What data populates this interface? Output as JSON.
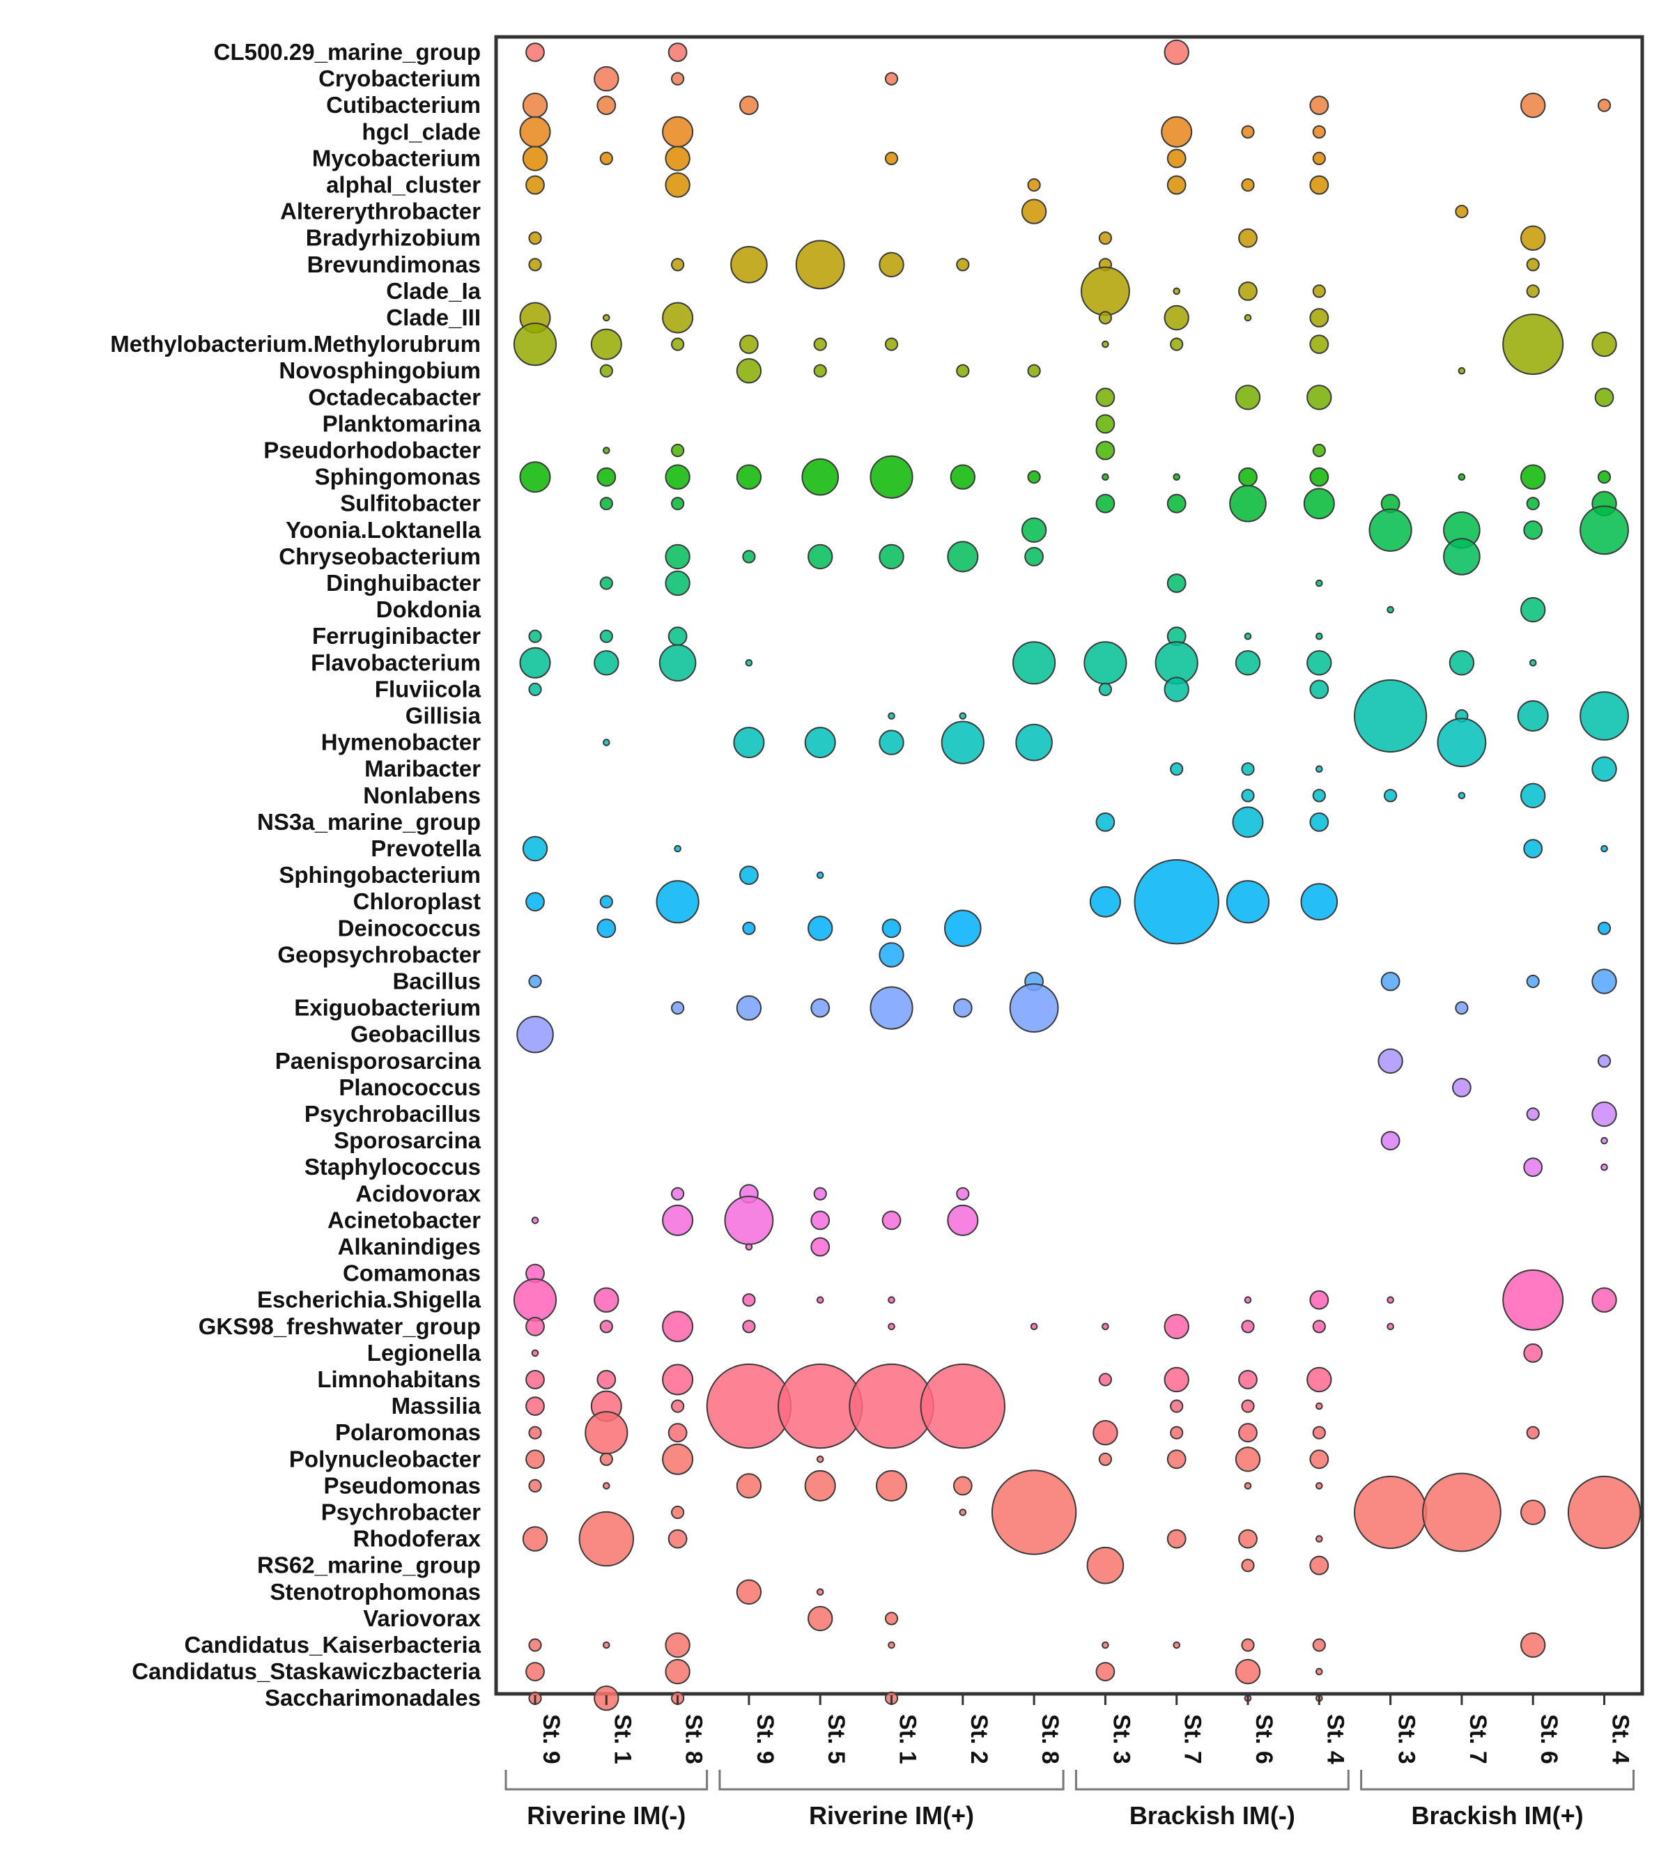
{
  "chart_data": {
    "type": "bubble",
    "genera": [
      "CL500.29_marine_group",
      "Cryobacterium",
      "Cutibacterium",
      "hgcI_clade",
      "Mycobacterium",
      "alphal_cluster",
      "Altererythrobacter",
      "Bradyrhizobium",
      "Brevundimonas",
      "Clade_Ia",
      "Clade_III",
      "Methylobacterium.Methylorubrum",
      "Novosphingobium",
      "Octadecabacter",
      "Planktomarina",
      "Pseudorhodobacter",
      "Sphingomonas",
      "Sulfitobacter",
      "Yoonia.Loktanella",
      "Chryseobacterium",
      "Dinghuibacter",
      "Dokdonia",
      "Ferruginibacter",
      "Flavobacterium",
      "Fluviicola",
      "Gillisia",
      "Hymenobacter",
      "Maribacter",
      "Nonlabens",
      "NS3a_marine_group",
      "Prevotella",
      "Sphingobacterium",
      "Chloroplast",
      "Deinococcus",
      "Geopsychrobacter",
      "Bacillus",
      "Exiguobacterium",
      "Geobacillus",
      "Paenisporosarcina",
      "Planococcus",
      "Psychrobacillus",
      "Sporosarcina",
      "Staphylococcus",
      "Acidovorax",
      "Acinetobacter",
      "Alkanindiges",
      "Comamonas",
      "Escherichia.Shigella",
      "GKS98_freshwater_group",
      "Legionella",
      "Limnohabitans",
      "Massilia",
      "Polaromonas",
      "Polynucleobacter",
      "Pseudomonas",
      "Psychrobacter",
      "Rhodoferax",
      "RS62_marine_group",
      "Stenotrophomonas",
      "Variovorax",
      "Candidatus_Kaiserbacteria",
      "Candidatus_Staskawiczbacteria",
      "Saccharimonadales"
    ],
    "columns": [
      {
        "label": "St. 9",
        "group": 0
      },
      {
        "label": "St. 1",
        "group": 0
      },
      {
        "label": "St. 8",
        "group": 0
      },
      {
        "label": "St. 9",
        "group": 1
      },
      {
        "label": "St. 5",
        "group": 1
      },
      {
        "label": "St. 1",
        "group": 1
      },
      {
        "label": "St. 2",
        "group": 1
      },
      {
        "label": "St. 8",
        "group": 1
      },
      {
        "label": "St. 3",
        "group": 2
      },
      {
        "label": "St. 7",
        "group": 2
      },
      {
        "label": "St. 6",
        "group": 2
      },
      {
        "label": "St. 4",
        "group": 2
      },
      {
        "label": "St. 3",
        "group": 3
      },
      {
        "label": "St. 7",
        "group": 3
      },
      {
        "label": "St. 6",
        "group": 3
      },
      {
        "label": "St. 4",
        "group": 3
      }
    ],
    "groups": [
      "Riverine IM(-)",
      "Riverine IM(+)",
      "Brackish IM(-)",
      "Brackish IM(+)"
    ],
    "size_unit": "relative bubble size (estimated, 1 = smallest, 14 = largest)",
    "values": [
      [
        3,
        0,
        3,
        0,
        0,
        0,
        0,
        0,
        0,
        4,
        0,
        0,
        0,
        0,
        0,
        0
      ],
      [
        0,
        4,
        2,
        0,
        0,
        2,
        0,
        0,
        0,
        0,
        0,
        0,
        0,
        0,
        0,
        0
      ],
      [
        4,
        3,
        0,
        3,
        0,
        0,
        0,
        0,
        0,
        0,
        0,
        3,
        0,
        0,
        4,
        2
      ],
      [
        5,
        0,
        5,
        0,
        0,
        0,
        0,
        0,
        0,
        5,
        2,
        2,
        0,
        0,
        0,
        0
      ],
      [
        4,
        2,
        4,
        0,
        0,
        2,
        0,
        0,
        0,
        3,
        0,
        2,
        0,
        0,
        0,
        0
      ],
      [
        3,
        0,
        4,
        0,
        0,
        0,
        0,
        2,
        0,
        3,
        2,
        3,
        0,
        0,
        0,
        0
      ],
      [
        0,
        0,
        0,
        0,
        0,
        0,
        0,
        4,
        0,
        0,
        0,
        0,
        0,
        2,
        0,
        0
      ],
      [
        2,
        0,
        0,
        0,
        0,
        0,
        0,
        0,
        2,
        0,
        3,
        0,
        0,
        0,
        4,
        0
      ],
      [
        2,
        0,
        2,
        6,
        8,
        4,
        2,
        0,
        2,
        0,
        0,
        0,
        0,
        0,
        2,
        0
      ],
      [
        0,
        0,
        0,
        0,
        0,
        0,
        0,
        0,
        8,
        1,
        3,
        2,
        0,
        0,
        2,
        0
      ],
      [
        5,
        1,
        5,
        0,
        0,
        0,
        0,
        0,
        2,
        4,
        1,
        3,
        0,
        0,
        0,
        0
      ],
      [
        7,
        5,
        2,
        3,
        2,
        2,
        0,
        0,
        1,
        2,
        0,
        3,
        0,
        0,
        10,
        4
      ],
      [
        0,
        2,
        0,
        4,
        2,
        0,
        2,
        2,
        0,
        0,
        0,
        0,
        0,
        1,
        0,
        0
      ],
      [
        0,
        0,
        0,
        0,
        0,
        0,
        0,
        0,
        3,
        0,
        4,
        4,
        0,
        0,
        0,
        3
      ],
      [
        0,
        0,
        0,
        0,
        0,
        0,
        0,
        0,
        3,
        0,
        0,
        0,
        0,
        0,
        0,
        0
      ],
      [
        0,
        1,
        2,
        0,
        0,
        0,
        0,
        0,
        3,
        0,
        0,
        2,
        0,
        0,
        0,
        0
      ],
      [
        5,
        3,
        4,
        4,
        6,
        7,
        4,
        2,
        1,
        1,
        3,
        3,
        0,
        1,
        4,
        2
      ],
      [
        0,
        2,
        2,
        0,
        0,
        0,
        0,
        0,
        3,
        3,
        6,
        5,
        3,
        0,
        2,
        4
      ],
      [
        0,
        0,
        0,
        0,
        0,
        0,
        0,
        4,
        0,
        0,
        0,
        0,
        7,
        6,
        3,
        8
      ],
      [
        0,
        0,
        4,
        2,
        4,
        4,
        5,
        3,
        0,
        0,
        0,
        0,
        0,
        6,
        0,
        0
      ],
      [
        0,
        2,
        4,
        0,
        0,
        0,
        0,
        0,
        0,
        3,
        0,
        1,
        0,
        0,
        0,
        0
      ],
      [
        0,
        0,
        0,
        0,
        0,
        0,
        0,
        0,
        0,
        0,
        0,
        0,
        1,
        0,
        4,
        0
      ],
      [
        2,
        2,
        3,
        0,
        0,
        0,
        0,
        0,
        0,
        3,
        1,
        1,
        0,
        0,
        0,
        0
      ],
      [
        5,
        4,
        6,
        1,
        0,
        0,
        0,
        7,
        7,
        7,
        4,
        4,
        0,
        4,
        1,
        0
      ],
      [
        2,
        0,
        0,
        0,
        0,
        0,
        0,
        0,
        2,
        4,
        0,
        3,
        0,
        0,
        0,
        0
      ],
      [
        0,
        0,
        0,
        0,
        0,
        1,
        1,
        0,
        0,
        0,
        0,
        0,
        12,
        2,
        5,
        8
      ],
      [
        0,
        1,
        0,
        5,
        5,
        4,
        7,
        6,
        0,
        0,
        0,
        0,
        0,
        8,
        0,
        0
      ],
      [
        0,
        0,
        0,
        0,
        0,
        0,
        0,
        0,
        0,
        2,
        2,
        1,
        0,
        0,
        0,
        4
      ],
      [
        0,
        0,
        0,
        0,
        0,
        0,
        0,
        0,
        0,
        0,
        2,
        2,
        2,
        1,
        4,
        0
      ],
      [
        0,
        0,
        0,
        0,
        0,
        0,
        0,
        0,
        3,
        0,
        5,
        3,
        0,
        0,
        0,
        0
      ],
      [
        4,
        0,
        1,
        0,
        0,
        0,
        0,
        0,
        0,
        0,
        0,
        0,
        0,
        0,
        3,
        1
      ],
      [
        0,
        0,
        0,
        3,
        1,
        0,
        0,
        0,
        0,
        0,
        0,
        0,
        0,
        0,
        0,
        0
      ],
      [
        3,
        2,
        7,
        0,
        0,
        0,
        0,
        0,
        5,
        14,
        7,
        6,
        0,
        0,
        0,
        0
      ],
      [
        0,
        3,
        0,
        2,
        4,
        3,
        6,
        0,
        0,
        0,
        0,
        0,
        0,
        0,
        0,
        2
      ],
      [
        0,
        0,
        0,
        0,
        0,
        4,
        0,
        0,
        0,
        0,
        0,
        0,
        0,
        0,
        0,
        0
      ],
      [
        2,
        0,
        0,
        0,
        0,
        0,
        0,
        3,
        0,
        0,
        0,
        0,
        3,
        0,
        2,
        4
      ],
      [
        0,
        0,
        2,
        4,
        3,
        7,
        3,
        8,
        0,
        0,
        0,
        0,
        0,
        2,
        0,
        0
      ],
      [
        6,
        0,
        0,
        0,
        0,
        0,
        0,
        0,
        0,
        0,
        0,
        0,
        0,
        0,
        0,
        0
      ],
      [
        0,
        0,
        0,
        0,
        0,
        0,
        0,
        0,
        0,
        0,
        0,
        0,
        4,
        0,
        0,
        2
      ],
      [
        0,
        0,
        0,
        0,
        0,
        0,
        0,
        0,
        0,
        0,
        0,
        0,
        0,
        3,
        0,
        0
      ],
      [
        0,
        0,
        0,
        0,
        0,
        0,
        0,
        0,
        0,
        0,
        0,
        0,
        0,
        0,
        2,
        4
      ],
      [
        0,
        0,
        0,
        0,
        0,
        0,
        0,
        0,
        0,
        0,
        0,
        0,
        3,
        0,
        0,
        1
      ],
      [
        0,
        0,
        0,
        0,
        0,
        0,
        0,
        0,
        0,
        0,
        0,
        0,
        0,
        0,
        3,
        1
      ],
      [
        0,
        0,
        2,
        3,
        2,
        0,
        2,
        0,
        0,
        0,
        0,
        0,
        0,
        0,
        0,
        0
      ],
      [
        1,
        0,
        5,
        8,
        3,
        3,
        5,
        0,
        0,
        0,
        0,
        0,
        0,
        0,
        0,
        0
      ],
      [
        0,
        0,
        0,
        1,
        3,
        0,
        0,
        0,
        0,
        0,
        0,
        0,
        0,
        0,
        0,
        0
      ],
      [
        3,
        0,
        0,
        0,
        0,
        0,
        0,
        0,
        0,
        0,
        0,
        0,
        0,
        0,
        0,
        0
      ],
      [
        7,
        4,
        0,
        2,
        1,
        1,
        0,
        0,
        0,
        0,
        1,
        3,
        1,
        0,
        10,
        4
      ],
      [
        3,
        2,
        5,
        2,
        0,
        1,
        0,
        1,
        1,
        4,
        2,
        2,
        1,
        0,
        0,
        0
      ],
      [
        1,
        0,
        0,
        0,
        0,
        0,
        0,
        0,
        0,
        0,
        0,
        0,
        0,
        0,
        3,
        0
      ],
      [
        3,
        3,
        5,
        0,
        0,
        0,
        0,
        0,
        2,
        4,
        3,
        4,
        0,
        0,
        0,
        0
      ],
      [
        3,
        5,
        2,
        14,
        14,
        14,
        14,
        0,
        0,
        2,
        2,
        1,
        0,
        0,
        0,
        0
      ],
      [
        2,
        7,
        3,
        0,
        0,
        0,
        0,
        0,
        4,
        2,
        3,
        2,
        0,
        0,
        2,
        0
      ],
      [
        3,
        2,
        5,
        0,
        1,
        0,
        0,
        0,
        2,
        3,
        4,
        3,
        0,
        0,
        0,
        0
      ],
      [
        2,
        1,
        0,
        4,
        5,
        5,
        3,
        0,
        0,
        0,
        1,
        1,
        0,
        0,
        0,
        0
      ],
      [
        0,
        0,
        2,
        0,
        0,
        0,
        1,
        14,
        0,
        0,
        0,
        0,
        12,
        13,
        4,
        12
      ],
      [
        4,
        9,
        3,
        0,
        0,
        0,
        0,
        0,
        0,
        3,
        3,
        1,
        0,
        0,
        0,
        0
      ],
      [
        0,
        0,
        0,
        0,
        0,
        0,
        0,
        0,
        6,
        0,
        2,
        3,
        0,
        0,
        0,
        0
      ],
      [
        0,
        0,
        0,
        4,
        1,
        0,
        0,
        0,
        0,
        0,
        0,
        0,
        0,
        0,
        0,
        0
      ],
      [
        0,
        0,
        0,
        0,
        4,
        2,
        0,
        0,
        0,
        0,
        0,
        0,
        0,
        0,
        0,
        0
      ],
      [
        2,
        1,
        4,
        0,
        0,
        1,
        0,
        0,
        1,
        1,
        2,
        2,
        0,
        0,
        4,
        0
      ],
      [
        3,
        0,
        4,
        0,
        0,
        0,
        0,
        0,
        3,
        0,
        4,
        1,
        0,
        0,
        0,
        0
      ],
      [
        2,
        4,
        2,
        0,
        0,
        2,
        0,
        0,
        0,
        0,
        1,
        1,
        0,
        0,
        0,
        0
      ]
    ],
    "colors": [
      "#f8766d",
      "#f37b59",
      "#ed8141",
      "#e7861b",
      "#e08b00",
      "#d89000",
      "#cf9400",
      "#c59900",
      "#bb9d00",
      "#b0a100",
      "#a3a500",
      "#95a900",
      "#86ac00",
      "#75af00",
      "#60b200",
      "#45b500",
      "#0bb702",
      "#00b934",
      "#00bb4a",
      "#00bc5b",
      "#00bd6a",
      "#00be78",
      "#00bf86",
      "#00c093",
      "#00c0a0",
      "#00c0ac",
      "#00c0b8",
      "#00bfc3",
      "#00bece",
      "#00bcd8",
      "#00bae2",
      "#00b7eb",
      "#00b3f4",
      "#00affb",
      "#1eabff",
      "#54a5ff",
      "#77a0ff",
      "#929aff",
      "#a994ff",
      "#bc8dff",
      "#cc87fe",
      "#d97ff8",
      "#e479f1",
      "#ee72e8",
      "#f56ddd",
      "#fb69d2",
      "#ff65c6",
      "#ff63b9",
      "#ff64ac",
      "#ff669e",
      "#ff6990",
      "#fd6c81",
      "#f96f73",
      "#f8766d",
      "#f8766d",
      "#f8766d",
      "#f8766d",
      "#f8766d",
      "#f8766d",
      "#f8766d",
      "#f8766d",
      "#f8766d",
      "#f8766d"
    ]
  }
}
